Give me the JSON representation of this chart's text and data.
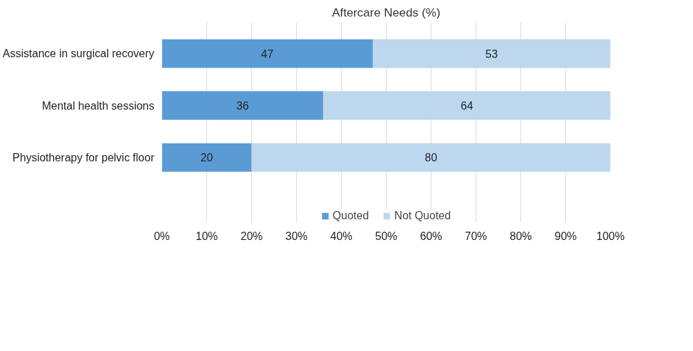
{
  "chart_data": {
    "type": "bar",
    "orientation": "horizontal",
    "stacked": true,
    "title": "Aftercare Needs (%)",
    "categories": [
      "Assistance in surgical recovery",
      "Mental health sessions",
      "Physiotherapy for pelvic floor"
    ],
    "series": [
      {
        "name": "Quoted",
        "color": "#5b9bd5",
        "values": [
          47,
          36,
          20
        ]
      },
      {
        "name": "Not Quoted",
        "color": "#bdd7ee",
        "values": [
          53,
          64,
          80
        ]
      }
    ],
    "xlim": [
      0,
      100
    ],
    "xticks": [
      {
        "value": 0,
        "label": "0%"
      },
      {
        "value": 10,
        "label": "10%"
      },
      {
        "value": 20,
        "label": "20%"
      },
      {
        "value": 30,
        "label": "30%"
      },
      {
        "value": 40,
        "label": "40%"
      },
      {
        "value": 50,
        "label": "50%"
      },
      {
        "value": 60,
        "label": "60%"
      },
      {
        "value": 70,
        "label": "70%"
      },
      {
        "value": 80,
        "label": "80%"
      },
      {
        "value": 90,
        "label": "90%"
      },
      {
        "value": 100,
        "label": "100%"
      }
    ],
    "grid": "x",
    "legend": "bottom",
    "data_labels": true
  }
}
